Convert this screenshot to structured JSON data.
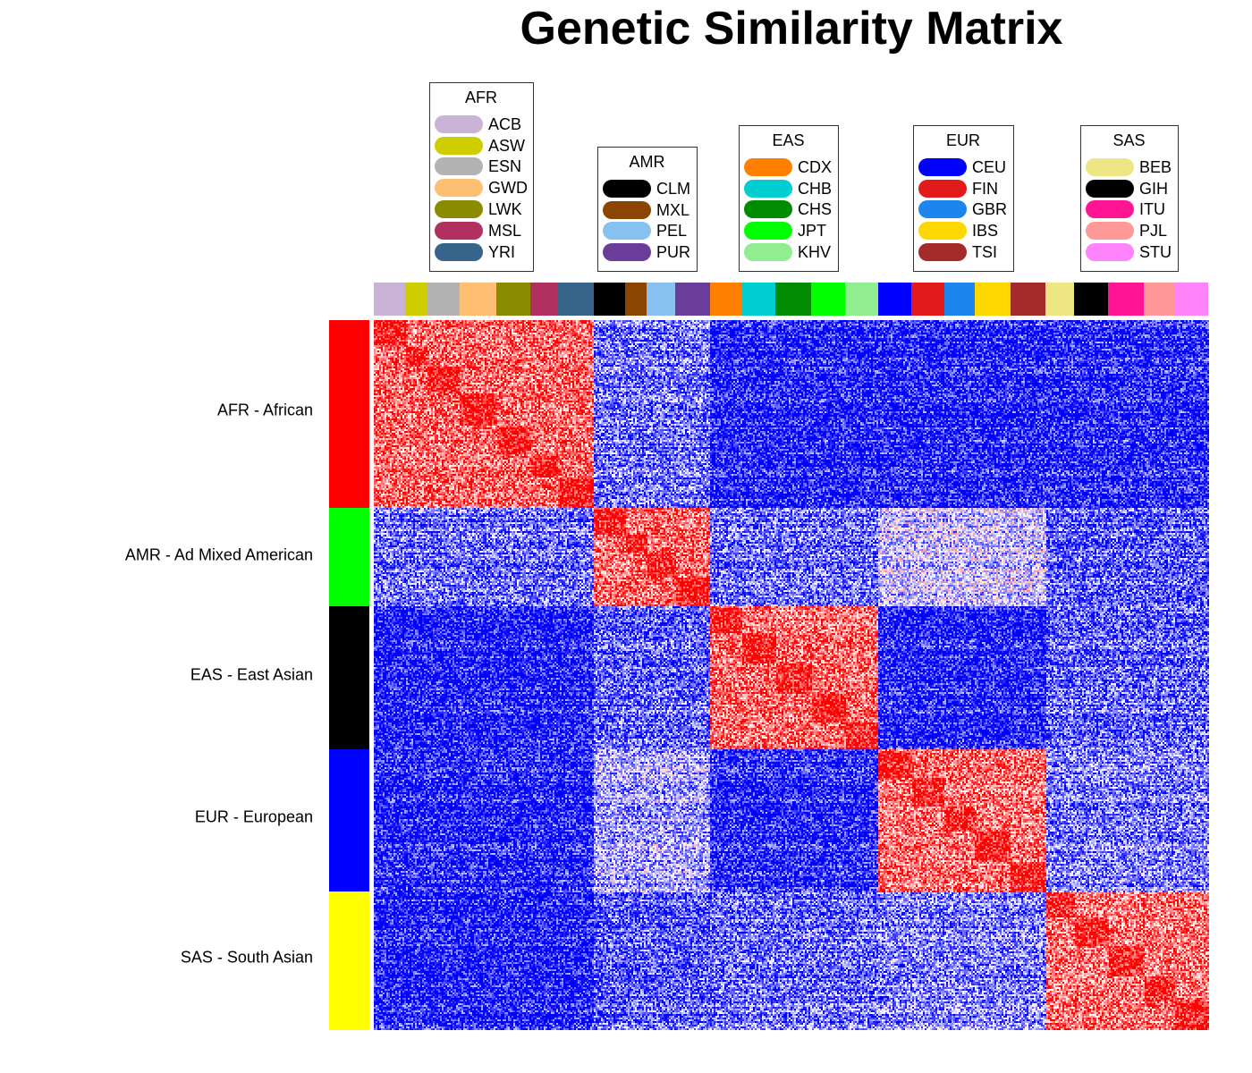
{
  "chart_data": {
    "type": "heatmap",
    "title": "Genetic Similarity Matrix",
    "colors": {
      "low": "#0000ff",
      "mid": "#ffffff",
      "high": "#ff0000"
    },
    "superpopulations": [
      {
        "code": "AFR",
        "row_label": "AFR - African",
        "row_color": "#ff0000",
        "populations": [
          {
            "code": "ACB",
            "color": "#c9b3d6"
          },
          {
            "code": "ASW",
            "color": "#cdcd00"
          },
          {
            "code": "ESN",
            "color": "#b3b3b3"
          },
          {
            "code": "GWD",
            "color": "#ffbf72"
          },
          {
            "code": "LWK",
            "color": "#8b8b00"
          },
          {
            "code": "MSL",
            "color": "#b03060"
          },
          {
            "code": "YRI",
            "color": "#36648b"
          }
        ]
      },
      {
        "code": "AMR",
        "row_label": "AMR - Ad Mixed American",
        "row_color": "#00ff00",
        "populations": [
          {
            "code": "CLM",
            "color": "#000000"
          },
          {
            "code": "MXL",
            "color": "#8b4500"
          },
          {
            "code": "PEL",
            "color": "#87c1f0"
          },
          {
            "code": "PUR",
            "color": "#6a3d9a"
          }
        ]
      },
      {
        "code": "EAS",
        "row_label": "EAS - East Asian",
        "row_color": "#000000",
        "populations": [
          {
            "code": "CDX",
            "color": "#ff7f00"
          },
          {
            "code": "CHB",
            "color": "#00ced1"
          },
          {
            "code": "CHS",
            "color": "#008b00"
          },
          {
            "code": "JPT",
            "color": "#00ff00"
          },
          {
            "code": "KHV",
            "color": "#90ee90"
          }
        ]
      },
      {
        "code": "EUR",
        "row_label": "EUR - European",
        "row_color": "#0000ff",
        "populations": [
          {
            "code": "CEU",
            "color": "#0000ff"
          },
          {
            "code": "FIN",
            "color": "#e31a1c"
          },
          {
            "code": "GBR",
            "color": "#1c86ee"
          },
          {
            "code": "IBS",
            "color": "#ffd700"
          },
          {
            "code": "TSI",
            "color": "#a52a2a"
          }
        ]
      },
      {
        "code": "SAS",
        "row_label": "SAS - South Asian",
        "row_color": "#ffff00",
        "populations": [
          {
            "code": "BEB",
            "color": "#eee685"
          },
          {
            "code": "GIH",
            "color": "#000000"
          },
          {
            "code": "ITU",
            "color": "#ff1493"
          },
          {
            "code": "PJL",
            "color": "#ff9896"
          },
          {
            "code": "STU",
            "color": "#ff83fa"
          }
        ]
      }
    ]
  }
}
